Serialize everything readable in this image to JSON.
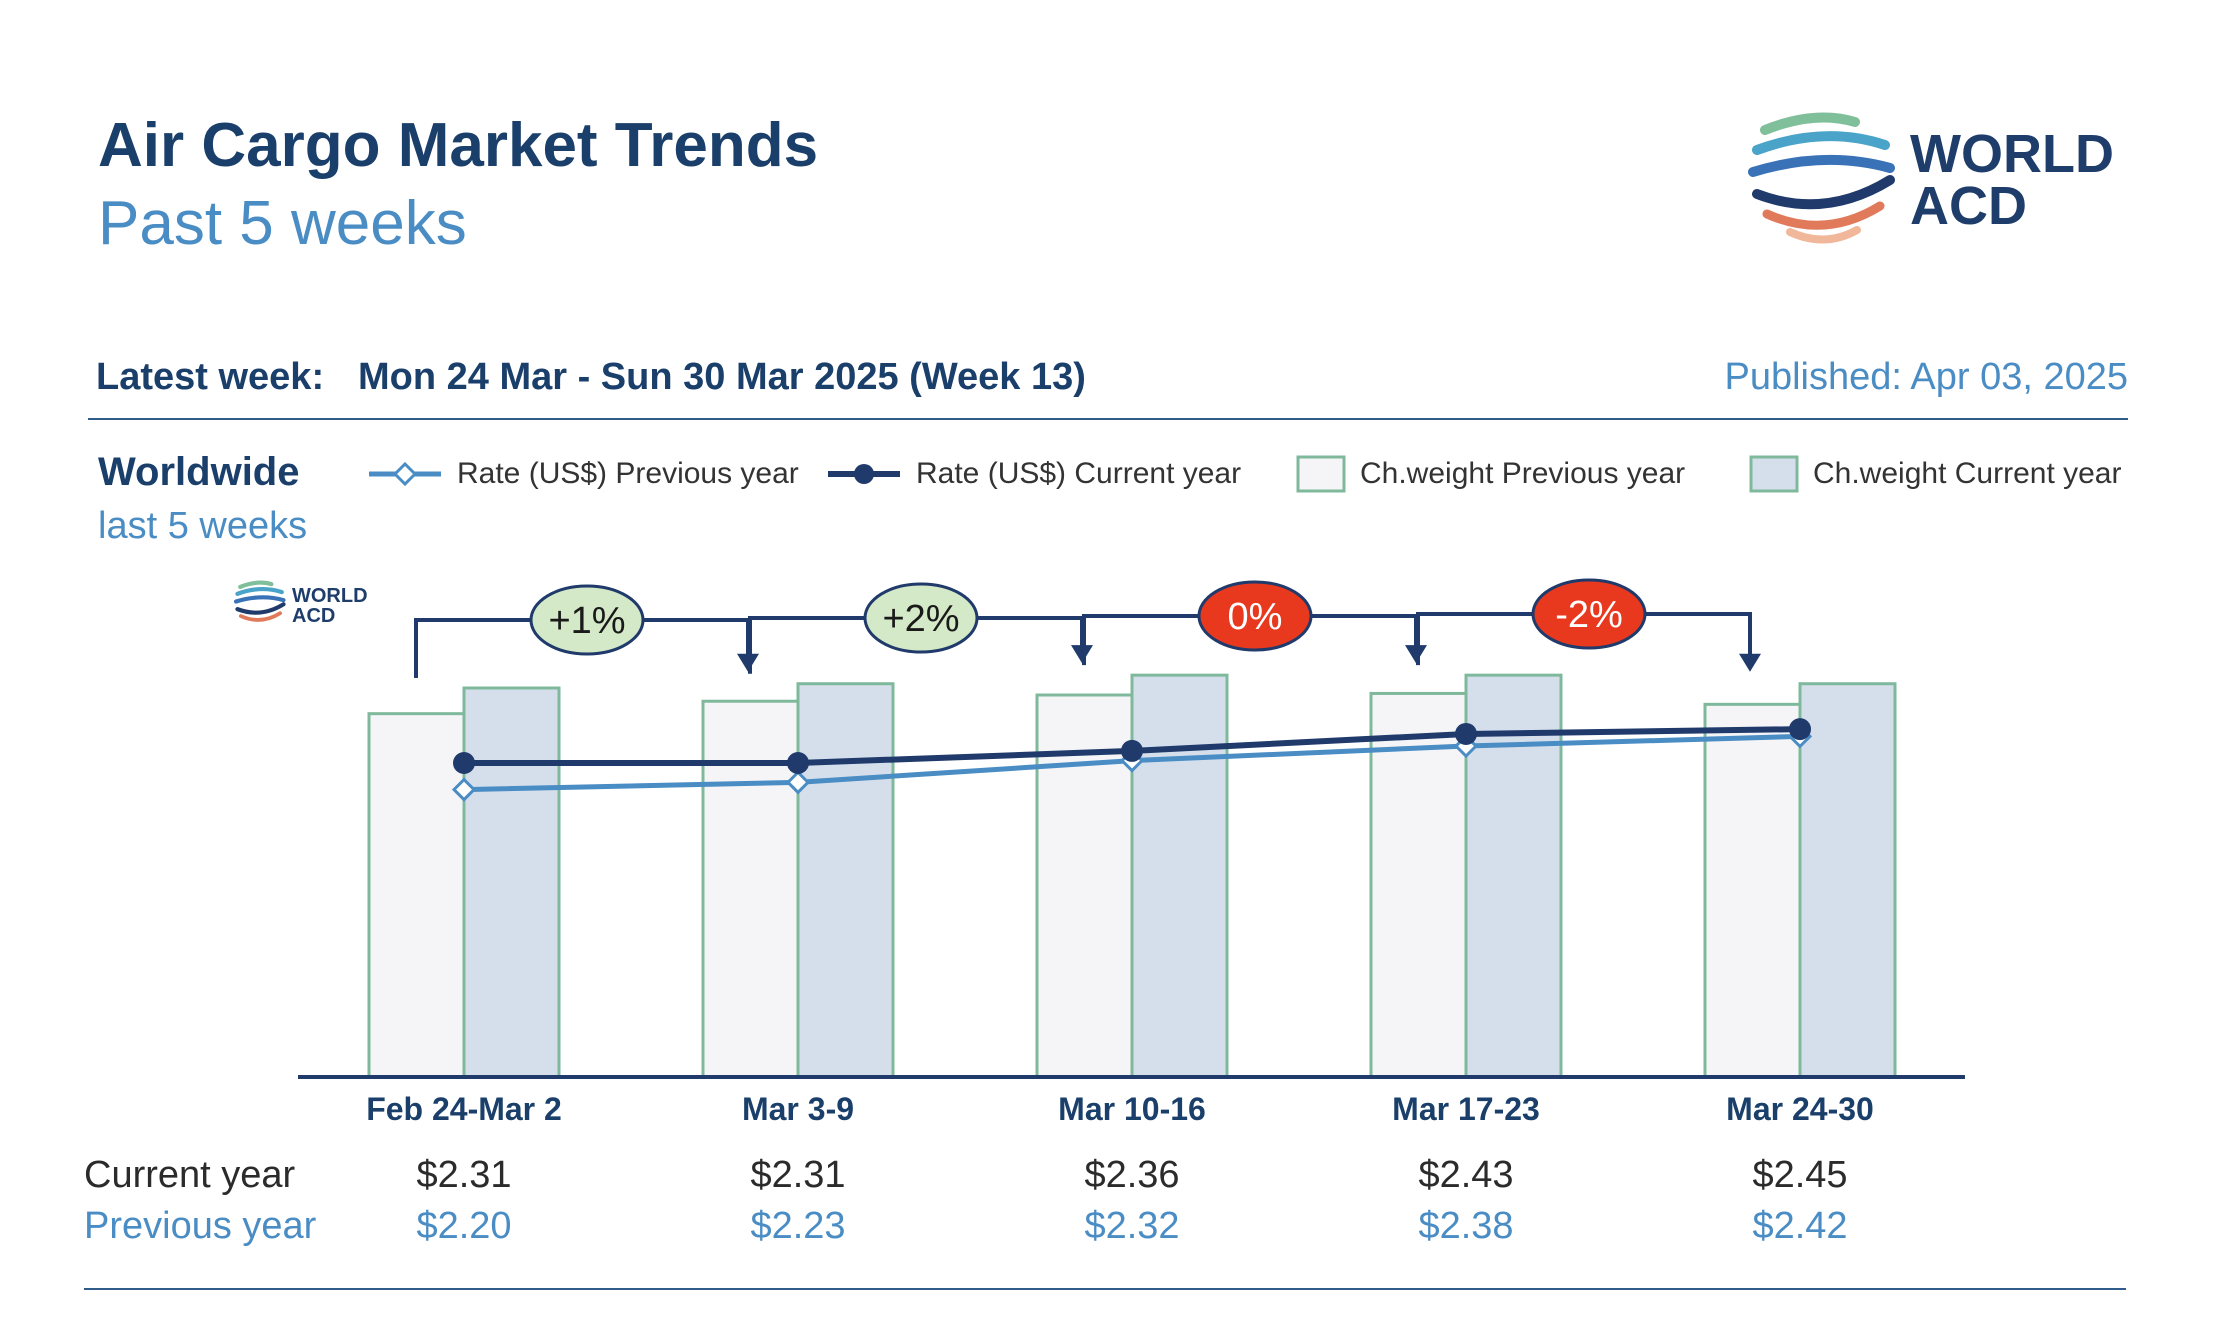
{
  "header": {
    "title": "Air Cargo Market Trends",
    "subtitle": "Past 5 weeks",
    "latest_week_label": "Latest week:",
    "latest_week_value": "Mon 24 Mar - Sun 30 Mar 2025 (Week 13)",
    "published": "Published: Apr 03, 2025"
  },
  "logo": {
    "line1": "WORLD",
    "line2": "ACD"
  },
  "region": {
    "name": "Worldwide",
    "period": "last 5 weeks"
  },
  "legend": [
    {
      "label": "Rate (US$) Previous year",
      "icon": "line-open-diamond"
    },
    {
      "label": "Rate (US$) Current year",
      "icon": "line-filled-circle"
    },
    {
      "label": "Ch.weight Previous year",
      "icon": "box-light"
    },
    {
      "label": "Ch.weight Current year",
      "icon": "box-blue"
    }
  ],
  "colors": {
    "rate_current": "#1f3a6b",
    "rate_previous": "#4a8cc4",
    "bar_previous_fill": "#f5f5f7",
    "bar_current_fill": "#d5dfec",
    "bar_outline": "#7fb99c",
    "badge_green": "#d4e9c7",
    "badge_red": "#e8391f"
  },
  "chart_data": {
    "type": "bar",
    "categories": [
      "Feb 24-Mar 2",
      "Mar 3-9",
      "Mar 10-16",
      "Mar 17-23",
      "Mar 24-30"
    ],
    "series": [
      {
        "name": "Ch.weight Previous year",
        "kind": "bar",
        "values": [
          93.4,
          96.6,
          98.2,
          98.6,
          95.8
        ]
      },
      {
        "name": "Ch.weight Current year",
        "kind": "bar",
        "values": [
          100.0,
          101.1,
          103.3,
          103.3,
          101.1
        ]
      },
      {
        "name": "Rate (US$) Previous year",
        "kind": "line",
        "values": [
          2.2,
          2.23,
          2.32,
          2.38,
          2.42
        ]
      },
      {
        "name": "Rate (US$) Current year",
        "kind": "line",
        "values": [
          2.31,
          2.31,
          2.36,
          2.43,
          2.45
        ]
      }
    ],
    "week_over_week_changes": [
      "+1%",
      "+2%",
      "0%",
      "-2%"
    ],
    "change_colors": [
      "green",
      "green",
      "red",
      "red"
    ],
    "table": {
      "current_label": "Current year",
      "previous_label": "Previous year",
      "current": [
        "$2.31",
        "$2.31",
        "$2.36",
        "$2.43",
        "$2.45"
      ],
      "previous": [
        "$2.20",
        "$2.23",
        "$2.32",
        "$2.38",
        "$2.42"
      ]
    }
  }
}
